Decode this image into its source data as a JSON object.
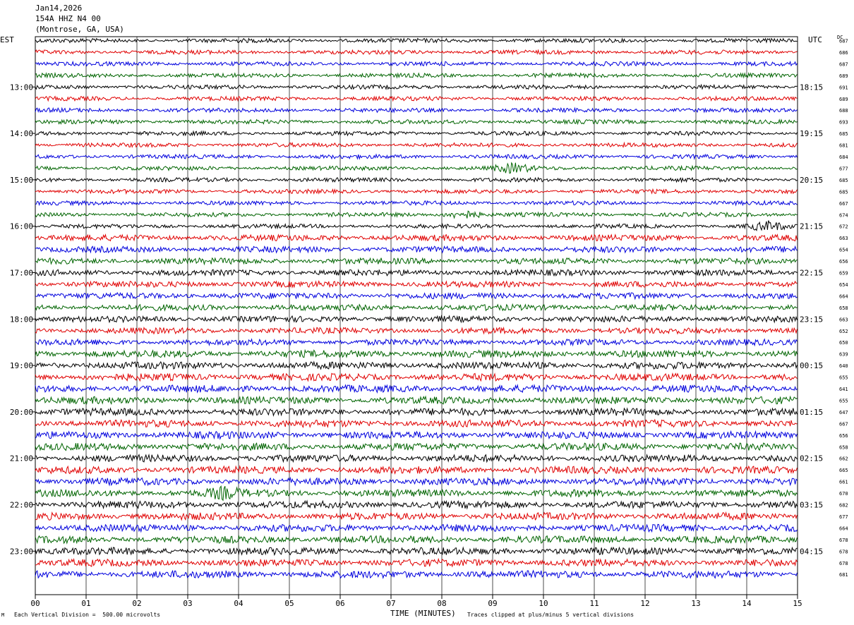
{
  "header": {
    "date": "Jan14,2026",
    "station": "154A HHZ N4 00",
    "location": "(Montrose, GA, USA)"
  },
  "left_tz": "EST",
  "right_tz": "UTC",
  "dc_label": "DC",
  "footer": {
    "scale": "Each Vertical Division =  500.00 microvolts",
    "clip": "Traces clipped at plus/minus 5 vertical divisions",
    "corner": "M"
  },
  "colors": {
    "trace_cycle": [
      "#000000",
      "#e00000",
      "#0000dd",
      "#006400"
    ],
    "grid": "#000000"
  },
  "chart_data": {
    "type": "line",
    "title": "",
    "xlabel": "TIME (MINUTES)",
    "ylabel": "",
    "xlim": [
      0,
      15
    ],
    "x_ticks": [
      "00",
      "01",
      "02",
      "03",
      "04",
      "05",
      "06",
      "07",
      "08",
      "09",
      "10",
      "11",
      "12",
      "13",
      "14",
      "15"
    ],
    "grid": true,
    "left_time_labels": [
      "13:00",
      "14:00",
      "15:00",
      "16:00",
      "17:00",
      "18:00",
      "19:00",
      "20:00",
      "21:00",
      "22:00",
      "23:00"
    ],
    "right_time_labels": [
      "18:15",
      "19:15",
      "20:15",
      "21:15",
      "22:15",
      "23:15",
      "00:15",
      "01:15",
      "02:15",
      "03:15",
      "04:15"
    ],
    "dc_values": [
      "687",
      "686",
      "687",
      "689",
      "691",
      "689",
      "688",
      "693",
      "685",
      "681",
      "684",
      "677",
      "685",
      "685",
      "667",
      "674",
      "672",
      "663",
      "654",
      "656",
      "659",
      "654",
      "664",
      "658",
      "663",
      "652",
      "650",
      "639",
      "640",
      "655",
      "641",
      "655",
      "647",
      "667",
      "656",
      "658",
      "662",
      "665",
      "661",
      "670",
      "682",
      "677",
      "664",
      "678",
      "678",
      "678",
      "681"
    ],
    "series_note_events": [
      {
        "trace": 15,
        "minute": 8.4
      },
      {
        "trace": 16,
        "minute": 14.4
      },
      {
        "trace": 11,
        "minute": 9.4
      },
      {
        "trace": 39,
        "minute": 3.7
      }
    ]
  }
}
